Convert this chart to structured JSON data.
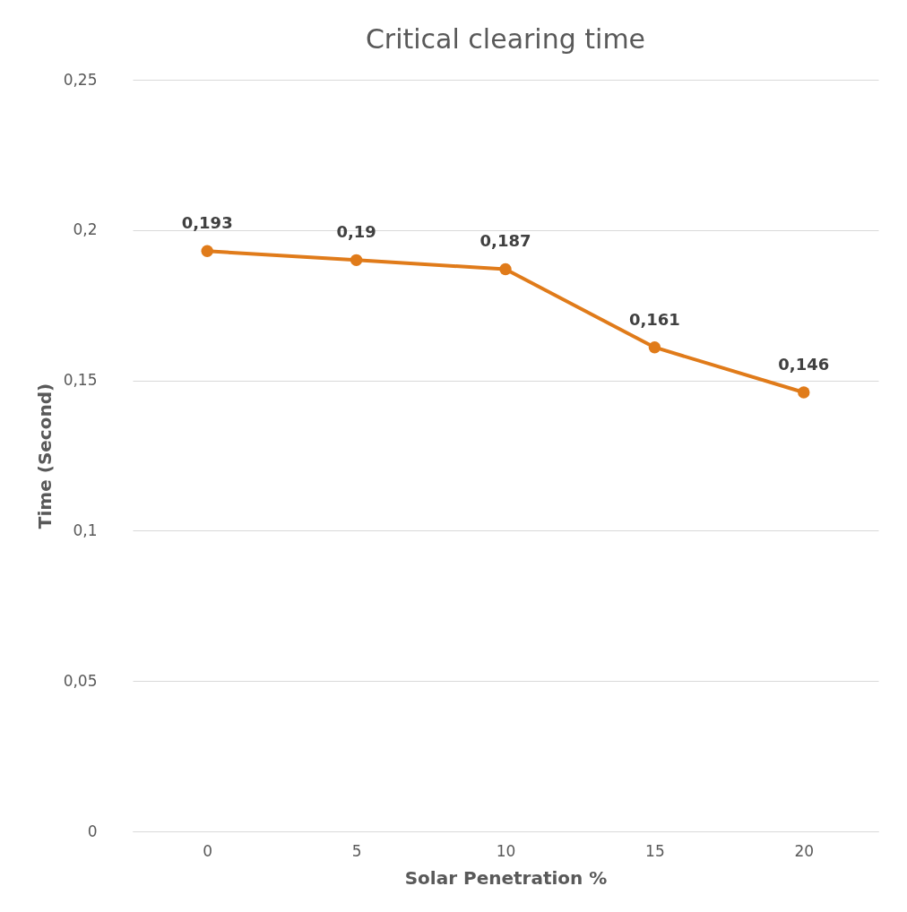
{
  "chart_data": {
    "type": "line",
    "title": "Critical clearing time",
    "xlabel": "Solar Penetration %",
    "ylabel": "Time (Second)",
    "categories": [
      "0",
      "5",
      "10",
      "15",
      "20"
    ],
    "series": [
      {
        "color": "#e07b1a",
        "values": [
          0.193,
          0.19,
          0.187,
          0.161,
          0.146
        ],
        "value_labels": [
          "0,193",
          "0,19",
          "0,187",
          "0,161",
          "0,146"
        ]
      }
    ],
    "ylim": [
      0,
      0.25
    ],
    "yticks": [
      {
        "value": 0,
        "label": "0"
      },
      {
        "value": 0.05,
        "label": "0,05"
      },
      {
        "value": 0.1,
        "label": "0,1"
      },
      {
        "value": 0.15,
        "label": "0,15"
      },
      {
        "value": 0.2,
        "label": "0,2"
      },
      {
        "value": 0.25,
        "label": "0,25"
      }
    ],
    "grid": "y",
    "marker": "circle",
    "line_style": "solid"
  }
}
